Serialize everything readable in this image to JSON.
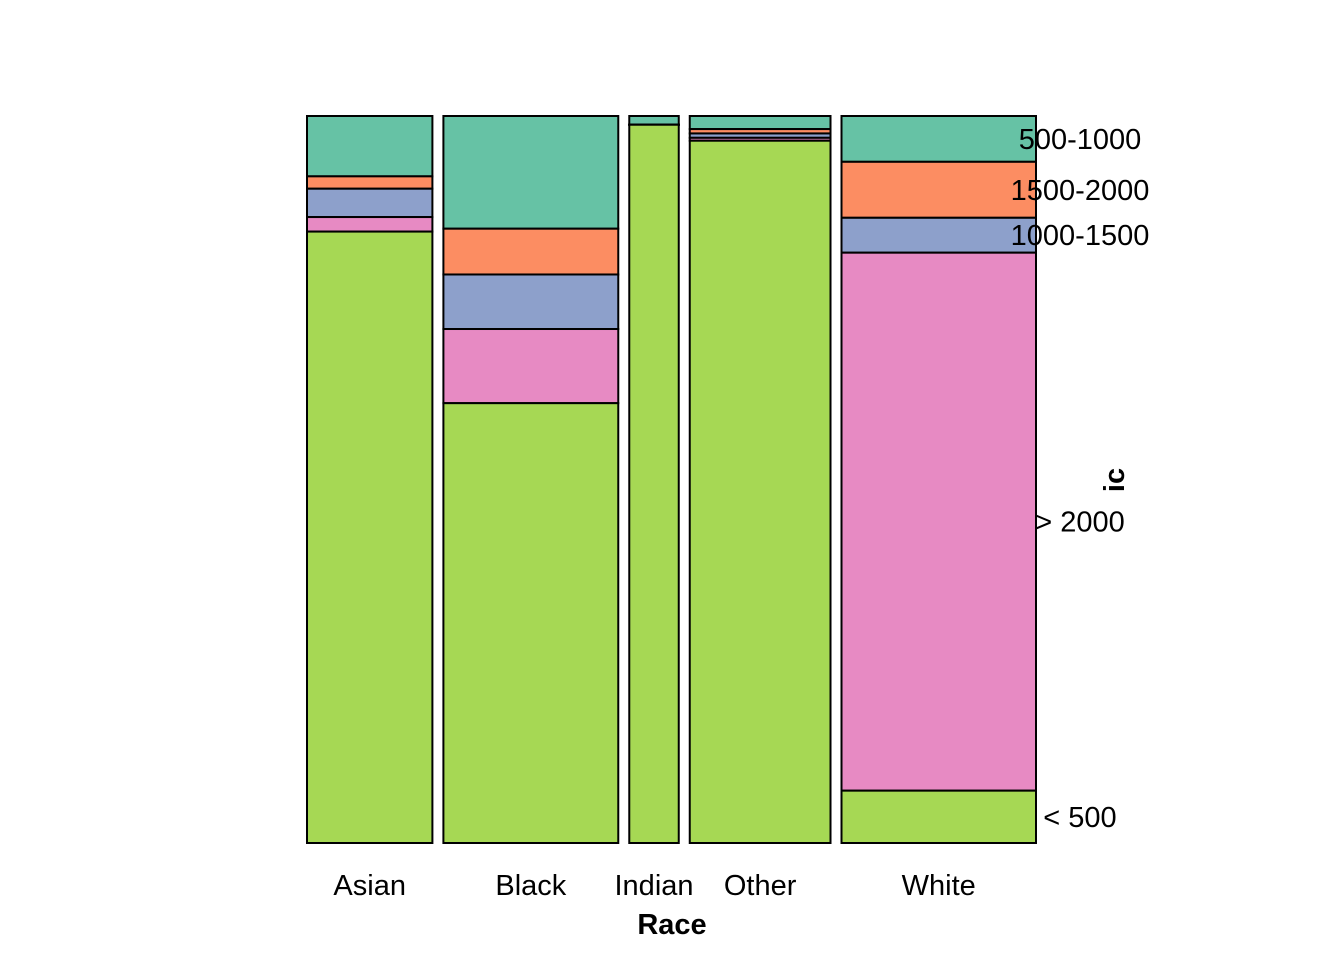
{
  "chart_data": {
    "type": "mosaic",
    "xlabel": "Race",
    "ylabel": "ic",
    "categories": [
      "Asian",
      "Black",
      "Indian",
      "Other",
      "White"
    ],
    "column_widths": [
      0.147,
      0.205,
      0.058,
      0.165,
      0.228
    ],
    "levels": [
      "500-1000",
      "1500-2000",
      "1000-1500",
      "> 2000",
      "< 500"
    ],
    "level_colors": [
      "#66c2a5",
      "#fc8d62",
      "#8da0cb",
      "#e78ac3",
      "#a6d854"
    ],
    "proportions": {
      "Asian": [
        0.083,
        0.017,
        0.039,
        0.02,
        0.841
      ],
      "Black": [
        0.155,
        0.063,
        0.075,
        0.102,
        0.605
      ],
      "Indian": [
        0.012,
        0.0,
        0.0,
        0.0,
        0.988
      ],
      "Other": [
        0.018,
        0.006,
        0.006,
        0.004,
        0.966
      ],
      "White": [
        0.063,
        0.077,
        0.048,
        0.74,
        0.072
      ]
    },
    "level_label_positions": "right of last column",
    "grid": false,
    "legend": "none"
  }
}
